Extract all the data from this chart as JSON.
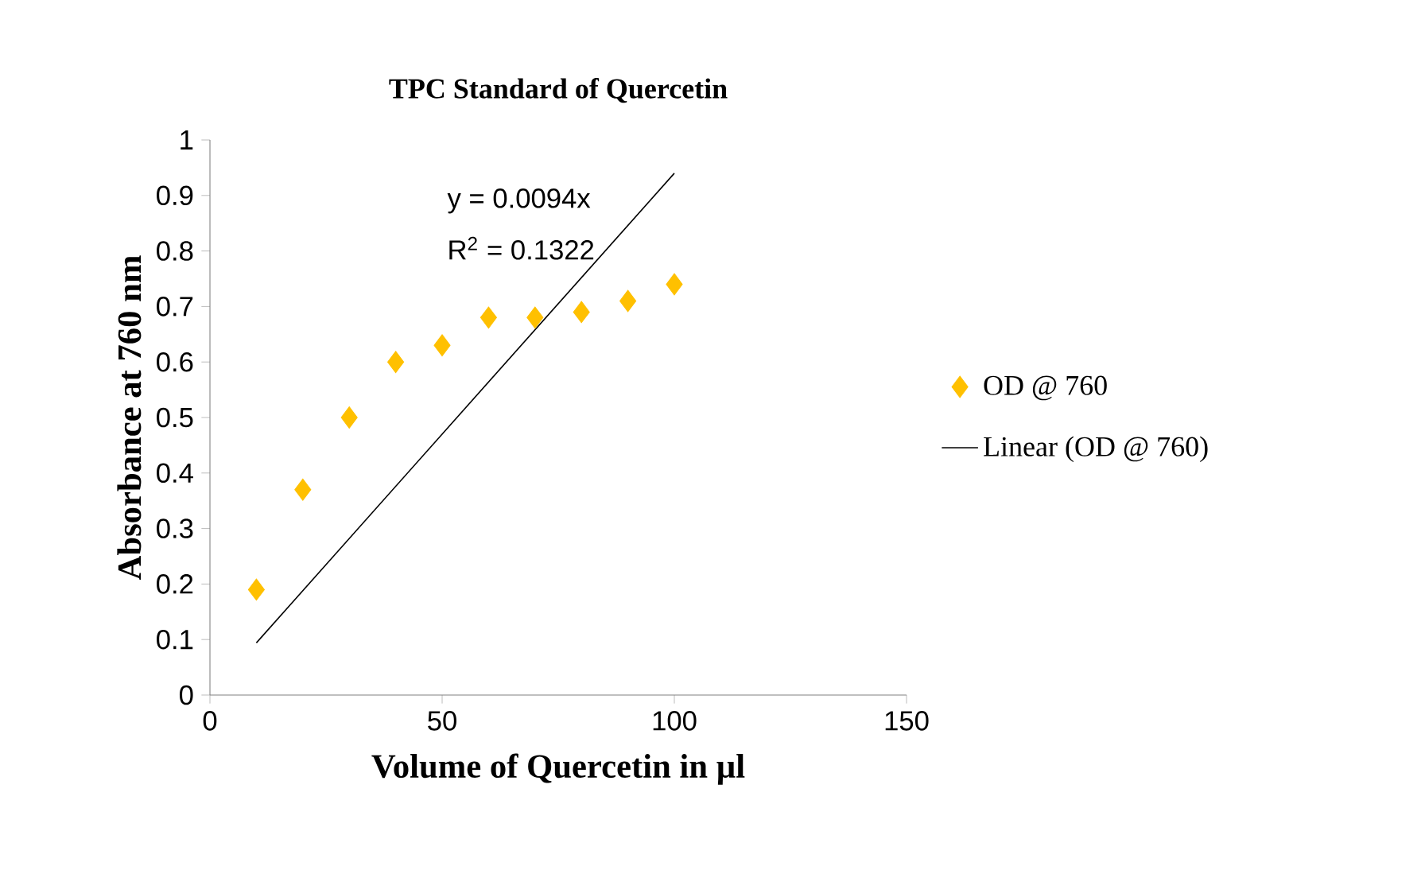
{
  "chart_data": {
    "type": "scatter",
    "title": "TPC Standard of Quercetin",
    "xlabel": "Volume of Quercetin in µl",
    "ylabel": "Absorbance at 760 nm",
    "series": [
      {
        "name": "OD @ 760",
        "color": "#ffc000",
        "marker": "diamond",
        "x": [
          10,
          20,
          30,
          40,
          50,
          60,
          70,
          80,
          90,
          100
        ],
        "values": [
          0.19,
          0.37,
          0.5,
          0.6,
          0.63,
          0.68,
          0.68,
          0.69,
          0.71,
          0.74
        ]
      },
      {
        "name": "Linear (OD @ 760)",
        "type": "line",
        "color": "#000000",
        "x": [
          10,
          100
        ],
        "values": [
          0.094,
          0.94
        ]
      }
    ],
    "xlim": [
      0,
      150
    ],
    "xticks": [
      0,
      50,
      100,
      150
    ],
    "ylim": [
      0,
      1
    ],
    "yticks": [
      0,
      0.1,
      0.2,
      0.3,
      0.4,
      0.5,
      0.6,
      0.7,
      0.8,
      0.9,
      1
    ],
    "legend": "right",
    "grid": false,
    "annotations": [
      "y = 0.0094x",
      "R$^{2}$ = 0.1322"
    ]
  }
}
